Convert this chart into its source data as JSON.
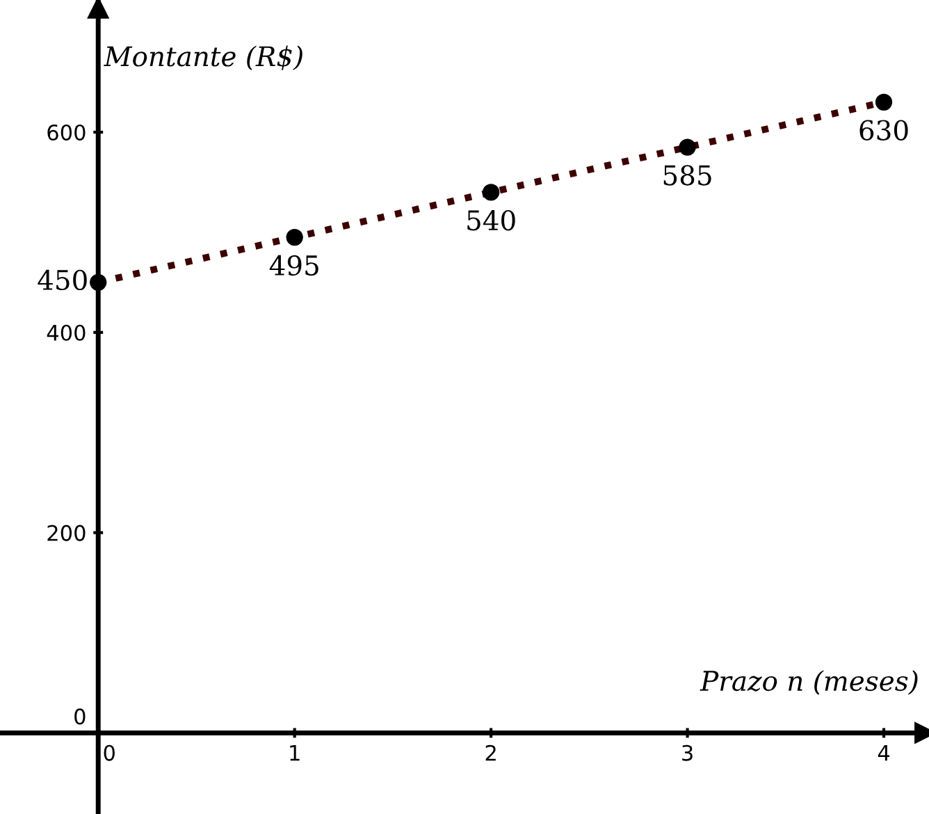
{
  "chart_data": {
    "type": "scatter",
    "xlabel": "Prazo n (meses)",
    "ylabel": "Montante (R$)",
    "x": [
      0,
      1,
      2,
      3,
      4
    ],
    "series": [
      {
        "color": "#000000",
        "values": [
          450,
          495,
          540,
          585,
          630
        ],
        "marker": "circle",
        "value_labels": [
          "450",
          "495",
          "540",
          "585",
          "630"
        ]
      },
      {
        "type": "line",
        "color": "#3d0000",
        "values": [
          450,
          495,
          540,
          585,
          630
        ],
        "line_style": "dotted"
      }
    ],
    "xlim": [
      -0.5,
      4.23
    ],
    "ylim": [
      -81,
      732
    ],
    "xticks": [
      0,
      1,
      2,
      3,
      4
    ],
    "yticks": [
      0,
      200,
      400,
      600
    ],
    "grid": false,
    "legend": false
  }
}
